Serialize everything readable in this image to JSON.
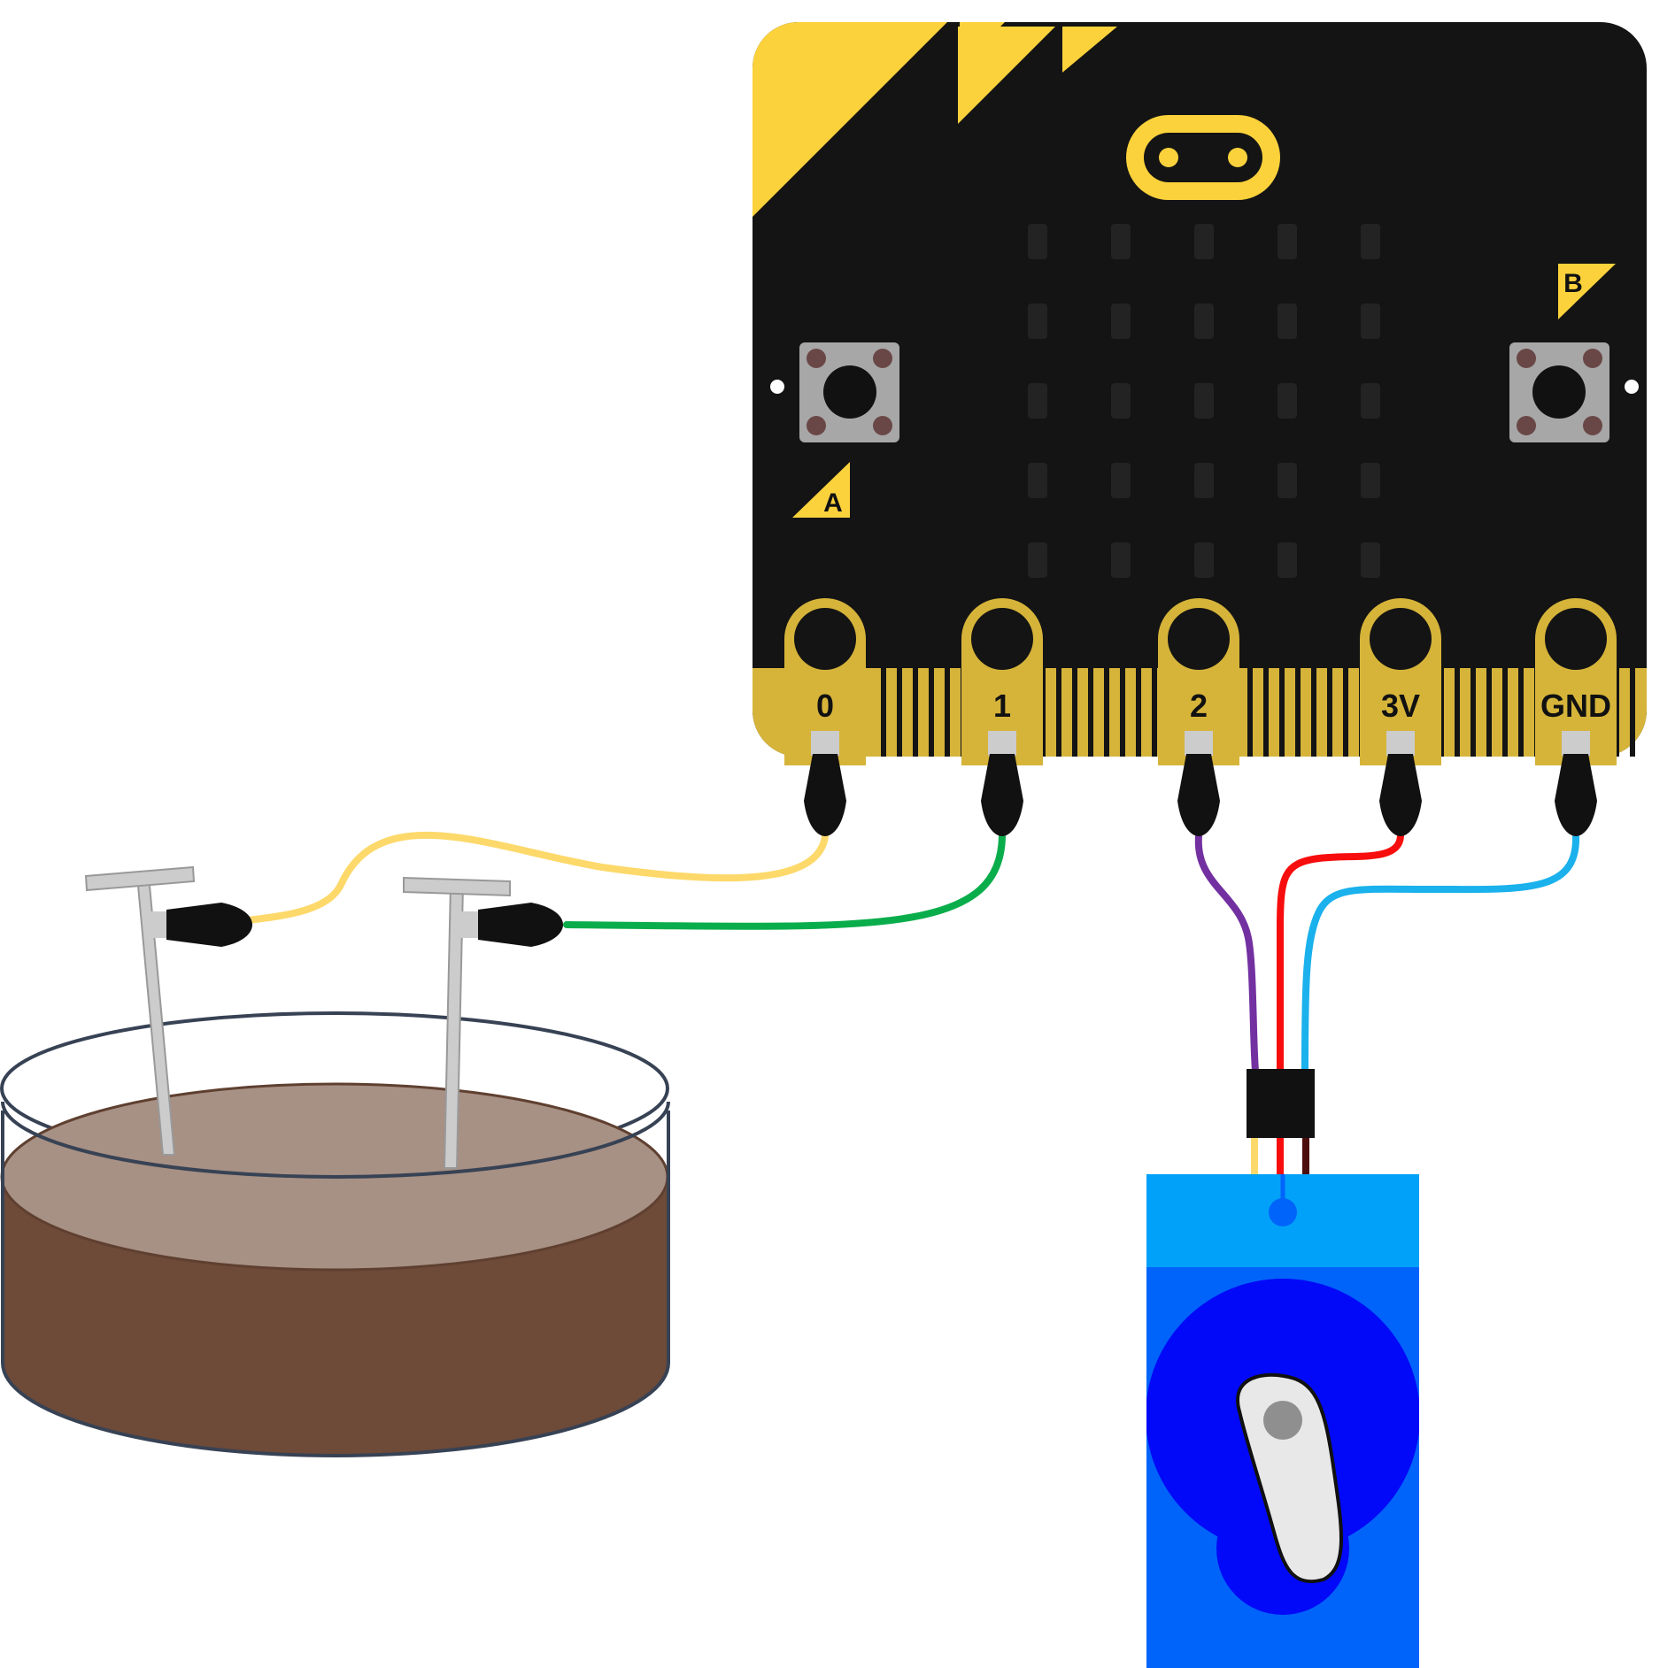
{
  "board": {
    "pins": [
      {
        "id": "0",
        "label": "0"
      },
      {
        "id": "1",
        "label": "1"
      },
      {
        "id": "2",
        "label": "2"
      },
      {
        "id": "3v",
        "label": "3V"
      },
      {
        "id": "gnd",
        "label": "GND"
      }
    ],
    "button_a": "A",
    "button_b": "B"
  },
  "colors": {
    "board": "#141414",
    "accent": "#fcd23c",
    "gold_pads": "#d6b43a",
    "led_off": "#232323",
    "button_grey": "#a7a7a7",
    "wire_yellow": "#fdd96b",
    "wire_green": "#0aad4b",
    "wire_purple": "#7330a0",
    "wire_red": "#f70d0d",
    "wire_blue": "#1ab1ec",
    "wire_brown": "#4c0d0d",
    "soil_top": "#a79084",
    "soil_side": "#6e4a38",
    "nail": "#cccccc",
    "servo_top": "#02a1f9",
    "servo_body": "#0064fa",
    "servo_disc": "#0209f8",
    "servo_horn": "#e8e8e8"
  },
  "wiring": [
    {
      "from": "0",
      "to": "nail-1",
      "color": "wire_yellow"
    },
    {
      "from": "1",
      "to": "nail-2",
      "color": "wire_green"
    },
    {
      "from": "2",
      "to": "servo-signal",
      "color": "wire_purple"
    },
    {
      "from": "3v",
      "to": "servo-power",
      "color": "wire_red"
    },
    {
      "from": "gnd",
      "to": "servo-ground",
      "color": "wire_blue"
    }
  ]
}
